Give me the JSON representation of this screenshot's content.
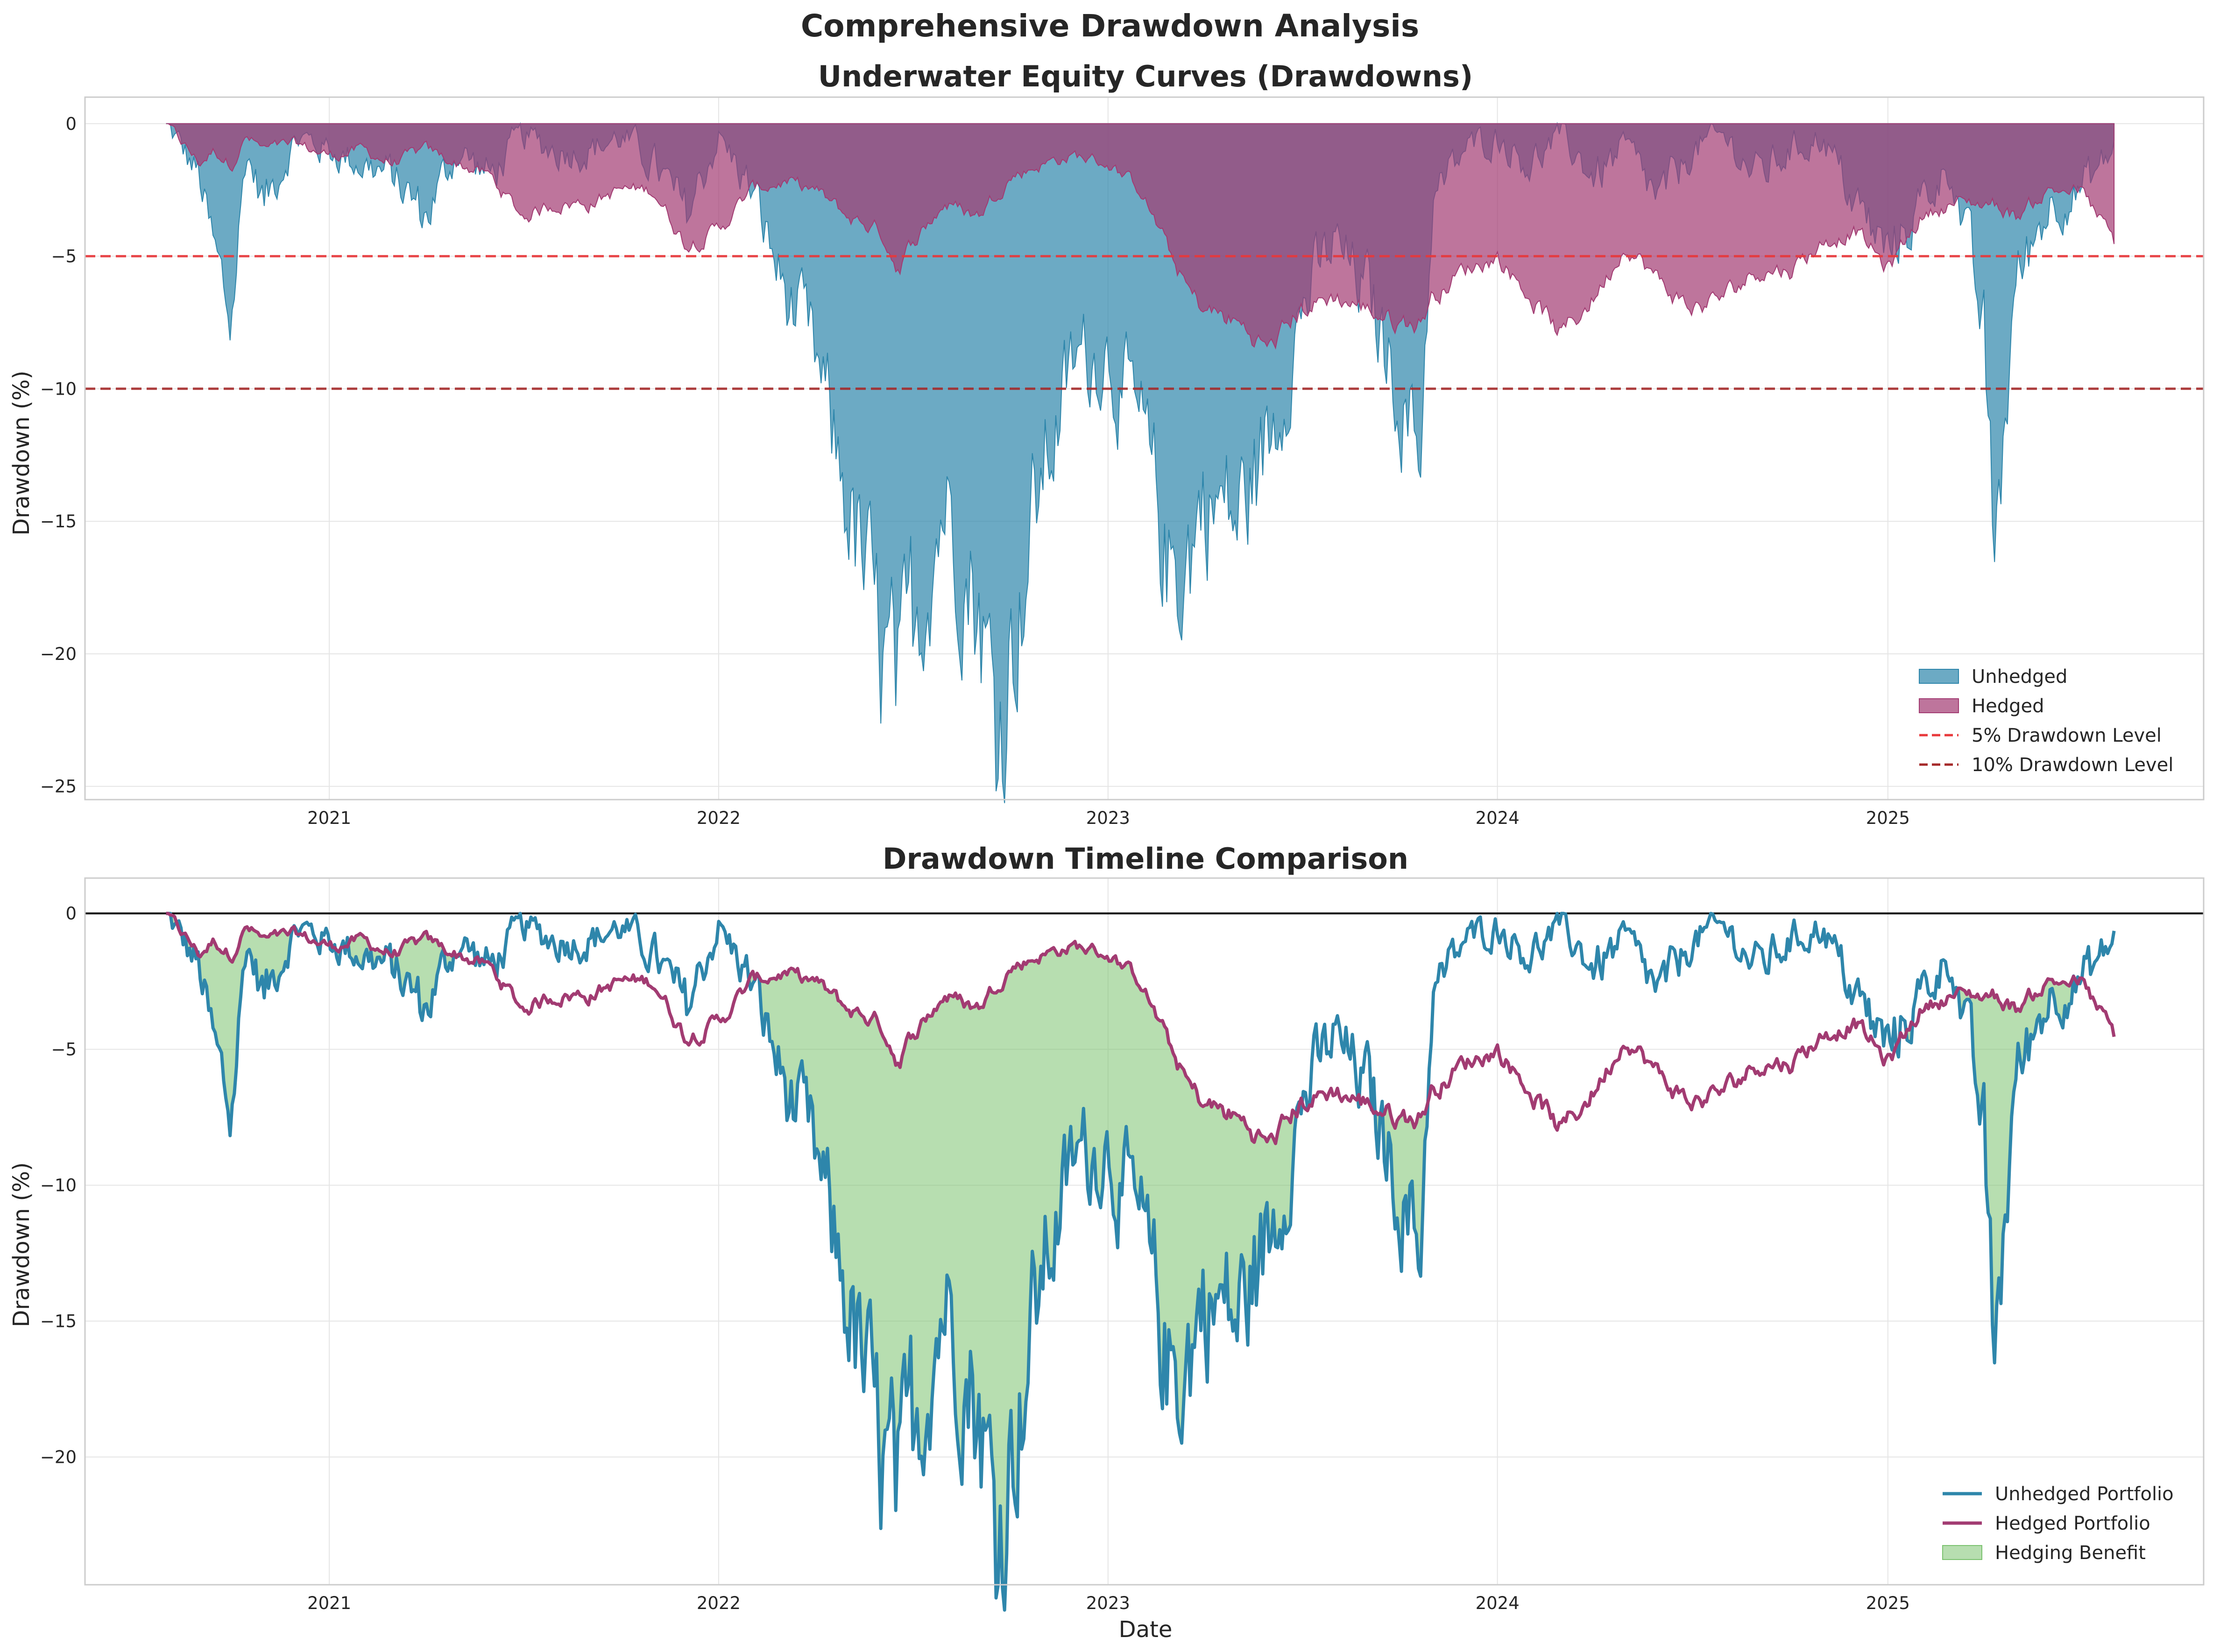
{
  "figure": {
    "suptitle": "Comprehensive Drawdown Analysis"
  },
  "colors": {
    "unhedged": "#2E86AB",
    "hedged": "#A23B72",
    "benefit": "#7BC26F",
    "level5": "#E8383B",
    "level10": "#A52A2A",
    "zero_line": "#000000",
    "grid": "#E5E5E5",
    "axes_edge": "#CCCCCC"
  },
  "chart_data": [
    {
      "type": "area",
      "title": "Underwater Equity Curves (Drawdowns)",
      "xlabel": "",
      "ylabel": "Drawdown (%)",
      "xlim": [
        "2020-05-17",
        "2025-10-24"
      ],
      "ylim": [
        -25.5,
        1
      ],
      "x_ticks": [
        "2021-01-01",
        "2022-01-01",
        "2023-01-01",
        "2024-01-01",
        "2025-01-01"
      ],
      "x_tick_labels": [
        "2021",
        "2022",
        "2023",
        "2024",
        "2025"
      ],
      "y_ticks": [
        0,
        -5,
        -10,
        -15,
        -20,
        -25
      ],
      "y_tick_labels": [
        "0",
        "−5",
        "−10",
        "−15",
        "−20",
        "−25"
      ],
      "grid": true,
      "legend_position": "lower-right",
      "x": [
        "2020-08-01",
        "2020-09-01",
        "2020-09-15",
        "2020-10-01",
        "2020-10-15",
        "2020-11-01",
        "2020-12-01",
        "2021-01-01",
        "2021-02-01",
        "2021-03-01",
        "2021-04-01",
        "2021-05-01",
        "2021-06-01",
        "2021-07-01",
        "2021-08-01",
        "2021-09-01",
        "2021-10-01",
        "2021-11-01",
        "2021-12-01",
        "2022-01-01",
        "2022-02-01",
        "2022-03-01",
        "2022-04-01",
        "2022-05-01",
        "2022-06-01",
        "2022-06-20",
        "2022-07-01",
        "2022-08-01",
        "2022-09-01",
        "2022-09-20",
        "2022-10-01",
        "2022-11-01",
        "2022-12-01",
        "2023-01-01",
        "2023-02-01",
        "2023-03-01",
        "2023-03-20",
        "2023-04-01",
        "2023-05-01",
        "2023-06-01",
        "2023-07-01",
        "2023-08-01",
        "2023-09-01",
        "2023-10-01",
        "2023-10-20",
        "2023-11-01",
        "2023-12-01",
        "2024-01-01",
        "2024-02-01",
        "2024-03-01",
        "2024-04-01",
        "2024-05-01",
        "2024-06-01",
        "2024-07-01",
        "2024-08-01",
        "2024-09-01",
        "2024-10-01",
        "2024-11-01",
        "2024-12-01",
        "2025-01-01",
        "2025-02-01",
        "2025-03-01",
        "2025-04-01",
        "2025-04-10",
        "2025-05-01",
        "2025-06-01",
        "2025-07-01",
        "2025-08-01"
      ],
      "series": [
        {
          "name": "Unhedged",
          "values": [
            0,
            -2,
            -5,
            -7.5,
            -1,
            -3,
            -0.5,
            -1,
            -1.5,
            -2,
            -3.5,
            -1,
            -2,
            -0.5,
            -1,
            -1,
            -0.5,
            -1.5,
            -3.5,
            -0.5,
            -2.5,
            -6,
            -9,
            -14,
            -20,
            -22.5,
            -19,
            -14,
            -18,
            -23,
            -20,
            -13,
            -9,
            -8.5,
            -12,
            -17,
            -16,
            -14,
            -15,
            -12,
            -7,
            -4.5,
            -6.5,
            -10,
            -12.5,
            -3,
            -1,
            -0.5,
            -1.5,
            -0.5,
            -2,
            -1,
            -3,
            -1,
            -0.5,
            -2,
            -1,
            -0.5,
            -3,
            -5,
            -3,
            -1.5,
            -8,
            -16.5,
            -6,
            -3,
            -2.5,
            -1
          ]
        },
        {
          "name": "Hedged",
          "values": [
            0,
            -1.5,
            -1,
            -1.5,
            -0.5,
            -1,
            -0.8,
            -1.2,
            -1,
            -1.5,
            -1,
            -1.5,
            -2,
            -3.5,
            -3,
            -3,
            -2.5,
            -2.5,
            -4.5,
            -4,
            -2.5,
            -2.2,
            -2.5,
            -3.5,
            -4,
            -5.5,
            -4.5,
            -3,
            -3.5,
            -2.5,
            -2,
            -1.5,
            -1.2,
            -1.5,
            -2.5,
            -5,
            -6.5,
            -7,
            -7.5,
            -8.5,
            -7,
            -6.5,
            -7,
            -7.5,
            -7.5,
            -6.5,
            -5.5,
            -5,
            -6.5,
            -8,
            -6.5,
            -4.5,
            -6,
            -7,
            -6.5,
            -5.5,
            -5.5,
            -4.5,
            -4,
            -5.5,
            -3.5,
            -3,
            -3,
            -3,
            -3.5,
            -2.5,
            -2.5,
            -4.5
          ]
        }
      ],
      "reference_lines": [
        {
          "name": "5% Drawdown Level",
          "value": -5
        },
        {
          "name": "10% Drawdown Level",
          "value": -10
        }
      ]
    },
    {
      "type": "line",
      "title": "Drawdown Timeline Comparison",
      "xlabel": "Date",
      "ylabel": "Drawdown (%)",
      "xlim": [
        "2020-05-17",
        "2025-10-24"
      ],
      "ylim": [
        -24.7,
        1.3
      ],
      "x_ticks": [
        "2021-01-01",
        "2022-01-01",
        "2023-01-01",
        "2024-01-01",
        "2025-01-01"
      ],
      "x_tick_labels": [
        "2021",
        "2022",
        "2023",
        "2024",
        "2025"
      ],
      "y_ticks": [
        0,
        -5,
        -10,
        -15,
        -20
      ],
      "y_tick_labels": [
        "0",
        "−5",
        "−10",
        "−15",
        "−20"
      ],
      "grid": true,
      "legend_position": "lower-right",
      "series_names": [
        "Unhedged Portfolio",
        "Hedged Portfolio"
      ],
      "fill_name": "Hedging Benefit",
      "zero_line": 0
    }
  ]
}
